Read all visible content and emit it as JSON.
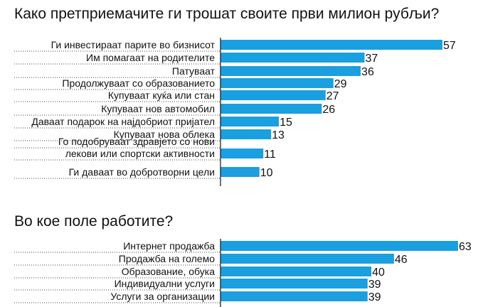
{
  "chart_data": [
    {
      "type": "bar",
      "orientation": "horizontal",
      "title": "Како претприемачите ги трошат своите први милион рубљи?",
      "categories": [
        "Ги инвестираат парите во бизнисот",
        "Им помагаат на родителите",
        "Патуваат",
        "Продолжуваат со образованието",
        "Купуваат куќа или стан",
        "Купуваат нов автомобил",
        "Даваат подарок на најдобриот пријател",
        "Купуваат нова облека",
        "Го подобруваат здравјето со нови лекови или спортски активности",
        "Ги даваат во добротворни цели"
      ],
      "category_lines": [
        [
          "Ги инвестираат парите во бизнисот"
        ],
        [
          "Им помагаат на родителите"
        ],
        [
          "Патуваат"
        ],
        [
          "Продолжуваат со образованието"
        ],
        [
          "Купуваат куќа или стан"
        ],
        [
          "Купуваат нов автомобил"
        ],
        [
          "Даваат подарок на најдобриот пријател"
        ],
        [
          "Купуваат нова облека"
        ],
        [
          "Го подобруваат здравјето со нови",
          "лекови или спортски активности"
        ],
        [
          "Ги даваат во добротворни цели"
        ]
      ],
      "values": [
        57,
        37,
        36,
        29,
        27,
        26,
        15,
        13,
        11,
        10
      ],
      "bar_color": "#1a9fe0",
      "xlim": [
        0,
        57
      ]
    },
    {
      "type": "bar",
      "orientation": "horizontal",
      "title": "Во кое поле работите?",
      "categories": [
        "Интернет продажба",
        "Продажба на големо",
        "Образование, обука",
        "Индивидуални услуги",
        "Услуги за организации"
      ],
      "category_lines": [
        [
          "Интернет продажба"
        ],
        [
          "Продажба на големо"
        ],
        [
          "Образование, обука"
        ],
        [
          "Индивидуални услуги"
        ],
        [
          "Услуги за организации"
        ]
      ],
      "values": [
        63,
        46,
        40,
        39,
        39
      ],
      "bar_color": "#1a9fe0",
      "xlim": [
        0,
        63
      ]
    }
  ]
}
